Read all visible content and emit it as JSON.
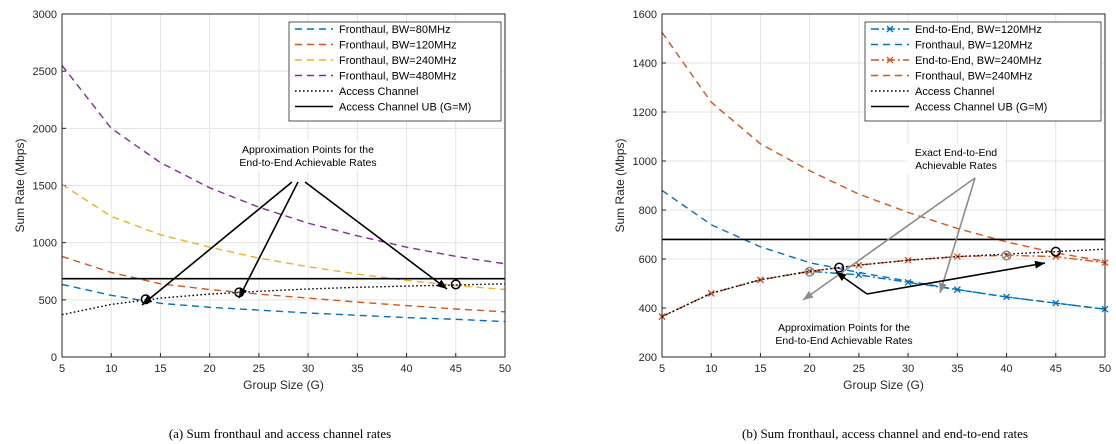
{
  "chart_data": [
    {
      "type": "line",
      "caption": "(a) Sum fronthaul and access channel rates",
      "xlabel": "Group Size (G)",
      "ylabel": "Sum Rate (Mbps)",
      "xlim": [
        5,
        50
      ],
      "ylim": [
        0,
        3000
      ],
      "xticks": [
        "5",
        "10",
        "15",
        "20",
        "25",
        "30",
        "35",
        "40",
        "45",
        "50"
      ],
      "yticks": [
        "0",
        "500",
        "1000",
        "1500",
        "2000",
        "2500",
        "3000"
      ],
      "grid": true,
      "legend_position": "top-right",
      "x": [
        5,
        10,
        15,
        20,
        25,
        30,
        35,
        40,
        45,
        50
      ],
      "series": [
        {
          "name": "Fronthaul, BW=80MHz",
          "color": "#0072BD",
          "style": "dashed",
          "values": [
            635,
            540,
            470,
            435,
            410,
            385,
            365,
            345,
            330,
            310
          ]
        },
        {
          "name": "Fronthaul, BW=120MHz",
          "color": "#D95319",
          "style": "dashed",
          "values": [
            880,
            740,
            640,
            590,
            550,
            515,
            480,
            450,
            420,
            395
          ]
        },
        {
          "name": "Fronthaul, BW=240MHz",
          "color": "#EDB120",
          "style": "dashed",
          "values": [
            1510,
            1230,
            1070,
            960,
            865,
            790,
            725,
            670,
            625,
            590
          ]
        },
        {
          "name": "Fronthaul, BW=480MHz",
          "color": "#7E2F8E",
          "style": "dashed",
          "values": [
            2550,
            2000,
            1700,
            1480,
            1310,
            1170,
            1060,
            960,
            880,
            815
          ]
        },
        {
          "name": "Access Channel",
          "color": "#000000",
          "style": "dotted",
          "values": [
            370,
            460,
            515,
            550,
            575,
            595,
            610,
            620,
            630,
            640
          ]
        },
        {
          "name": "Access Channel UB (G=M)",
          "color": "#000000",
          "style": "solid",
          "values": [
            685,
            685,
            685,
            685,
            685,
            685,
            685,
            685,
            685,
            685
          ]
        }
      ],
      "markers": [
        {
          "x": 13.5,
          "y": 505
        },
        {
          "x": 23,
          "y": 565
        },
        {
          "x": 45,
          "y": 635
        }
      ],
      "annotation": {
        "lines": [
          "Approximation Points for the",
          "End-to-End Achievable Rates"
        ]
      }
    },
    {
      "type": "line",
      "caption": "(b) Sum fronthaul, access channel and end-to-end rates",
      "xlabel": "Group Size (G)",
      "ylabel": "Sum Rate (Mbps)",
      "xlim": [
        5,
        50
      ],
      "ylim": [
        200,
        1600
      ],
      "xticks": [
        "5",
        "10",
        "15",
        "20",
        "25",
        "30",
        "35",
        "40",
        "45",
        "50"
      ],
      "yticks": [
        "200",
        "400",
        "600",
        "800",
        "1000",
        "1200",
        "1400",
        "1600"
      ],
      "grid": true,
      "legend_position": "top-right",
      "x": [
        5,
        10,
        15,
        20,
        25,
        30,
        35,
        40,
        45,
        50
      ],
      "series": [
        {
          "name": "End-to-End, BW=120MHz",
          "color": "#0072BD",
          "style": "dashdot",
          "marker": "x",
          "values": [
            365,
            460,
            515,
            550,
            535,
            505,
            475,
            445,
            420,
            395
          ]
        },
        {
          "name": "Fronthaul, BW=120MHz",
          "color": "#0072BD",
          "style": "dashed",
          "values": [
            880,
            740,
            650,
            585,
            545,
            510,
            475,
            445,
            420,
            395
          ]
        },
        {
          "name": "End-to-End, BW=240MHz",
          "color": "#D95319",
          "style": "dashdot",
          "marker": "x",
          "values": [
            365,
            460,
            515,
            550,
            575,
            595,
            610,
            615,
            610,
            585
          ]
        },
        {
          "name": "Fronthaul, BW=240MHz",
          "color": "#D95319",
          "style": "dashed",
          "values": [
            1525,
            1240,
            1070,
            960,
            865,
            790,
            725,
            670,
            625,
            590
          ]
        },
        {
          "name": "Access Channel",
          "color": "#000000",
          "style": "dotted",
          "values": [
            365,
            460,
            515,
            550,
            575,
            595,
            610,
            620,
            630,
            640
          ]
        },
        {
          "name": "Access Channel UB (G=M)",
          "color": "#000000",
          "style": "solid",
          "values": [
            680,
            680,
            680,
            680,
            680,
            680,
            680,
            680,
            680,
            680
          ]
        }
      ],
      "markers": [
        {
          "x": 23,
          "y": 565
        },
        {
          "x": 45,
          "y": 630
        }
      ],
      "exact_markers": [
        {
          "x": 20,
          "y": 548
        },
        {
          "x": 40,
          "y": 614
        }
      ],
      "annotation_exact": {
        "lines": [
          "Exact End-to-End",
          "Achievable Rates"
        ]
      },
      "annotation": {
        "lines": [
          "Approximation Points for the",
          "End-to-End Achievable Rates"
        ]
      }
    }
  ]
}
